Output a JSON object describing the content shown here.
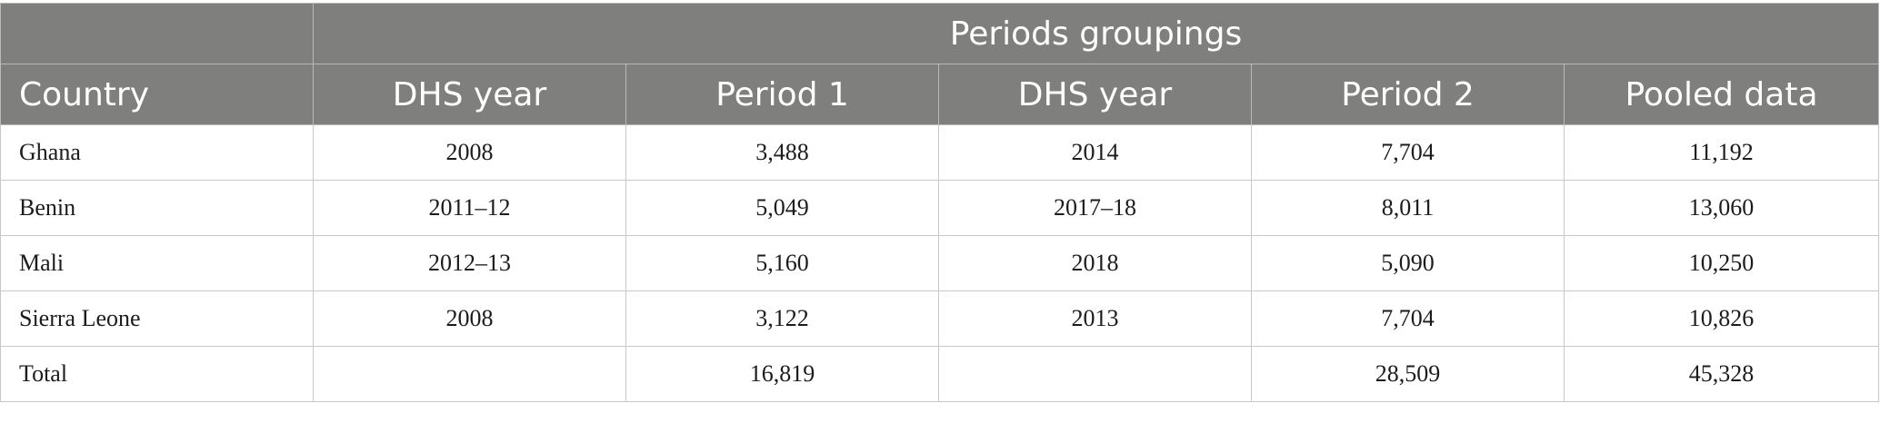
{
  "table": {
    "group_header": "Periods groupings",
    "columns": [
      "Country",
      "DHS year",
      "Period 1",
      "DHS year",
      "Period 2",
      "Pooled data"
    ],
    "rows": [
      [
        "Ghana",
        "2008",
        "3,488",
        "2014",
        "7,704",
        "11,192"
      ],
      [
        "Benin",
        "2011–12",
        "5,049",
        "2017–18",
        "8,011",
        "13,060"
      ],
      [
        "Mali",
        "2012–13",
        "5,160",
        "2018",
        "5,090",
        "10,250"
      ],
      [
        "Sierra Leone",
        "2008",
        "3,122",
        "2013",
        "7,704",
        "10,826"
      ],
      [
        "Total",
        "",
        "16,819",
        "",
        "28,509",
        "45,328"
      ]
    ]
  },
  "colors": {
    "header_bg": "#7f807d",
    "header_text": "#ffffff",
    "border": "#c8c8c6"
  }
}
